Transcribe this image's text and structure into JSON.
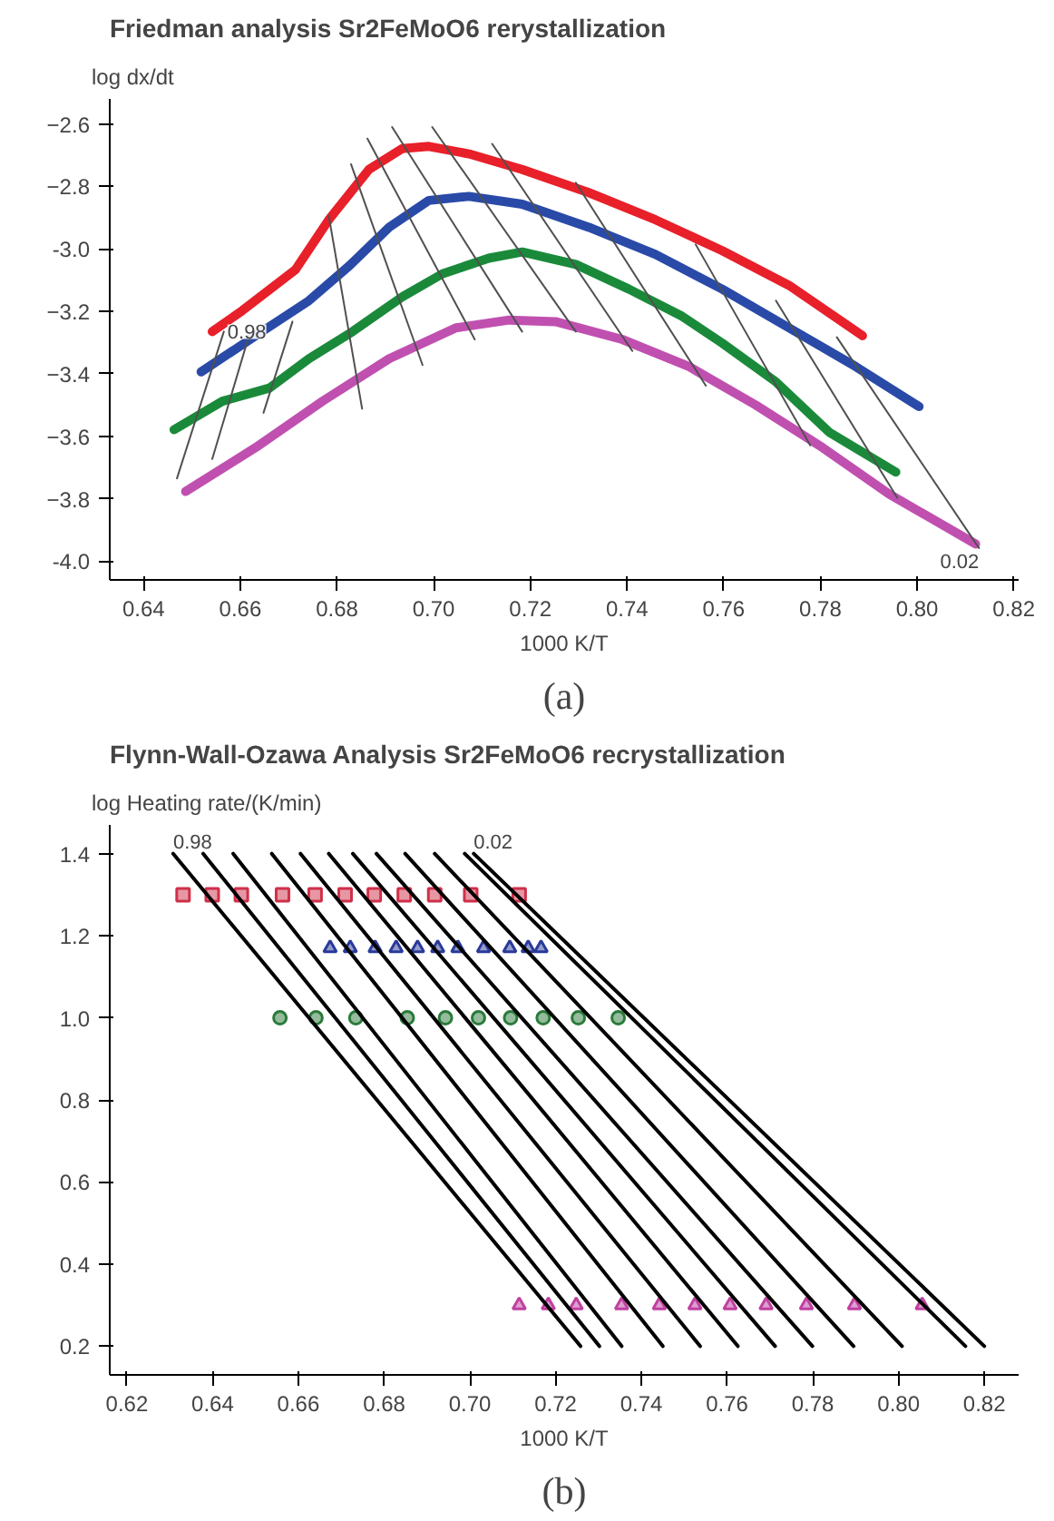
{
  "chart_data": [
    {
      "type": "line",
      "title": "Friedman analysis Sr2FeMoO6 rerystallization",
      "xlabel": "1000 K/T",
      "ylabel": "log dx/dt",
      "xlim": [
        0.633,
        0.821
      ],
      "ylim": [
        -4.06,
        -2.52
      ],
      "xticks": [
        0.64,
        0.66,
        {
          "value": 0.68,
          "label": "0.68"
        },
        {
          "value": 0.7,
          "label": "0.70"
        },
        0.72,
        0.74,
        0.76,
        0.78,
        {
          "value": 0.8,
          "label": "0.80"
        },
        0.82
      ],
      "yticks": [
        {
          "value": -4.0,
          "label": "-4.0"
        },
        -3.8,
        -3.6,
        -3.4,
        -3.2,
        {
          "value": -3.0,
          "label": "-3.0"
        },
        -2.8,
        -2.6
      ],
      "grid": false,
      "series": [
        {
          "color": "#e8202a",
          "x": [
            0.6542,
            0.6604,
            0.6714,
            0.6783,
            0.6866,
            0.6935,
            0.699,
            0.7073,
            0.7183,
            0.7321,
            0.7459,
            0.7597,
            0.7735,
            0.7887
          ],
          "values": [
            -3.265,
            -3.198,
            -3.067,
            -2.907,
            -2.746,
            -2.679,
            -2.672,
            -2.696,
            -2.746,
            -2.82,
            -2.907,
            -3.006,
            -3.117,
            -3.278
          ]
        },
        {
          "color": "#2a4aa8",
          "x": [
            0.6519,
            0.6632,
            0.6742,
            0.6825,
            0.6908,
            0.699,
            0.7073,
            0.7183,
            0.7321,
            0.7459,
            0.7597,
            0.7735,
            0.7873,
            0.8004
          ],
          "values": [
            -3.394,
            -3.278,
            -3.166,
            -3.055,
            -2.931,
            -2.845,
            -2.832,
            -2.857,
            -2.931,
            -3.018,
            -3.129,
            -3.253,
            -3.377,
            -3.505
          ]
        },
        {
          "color": "#1a8a3a",
          "x": [
            0.6463,
            0.6563,
            0.666,
            0.6742,
            0.6832,
            0.6935,
            0.7018,
            0.7114,
            0.7183,
            0.7294,
            0.7404,
            0.7514,
            0.7597,
            0.7708,
            0.7818,
            0.7956
          ],
          "values": [
            -3.579,
            -3.488,
            -3.446,
            -3.352,
            -3.265,
            -3.154,
            -3.08,
            -3.03,
            -3.01,
            -3.05,
            -3.129,
            -3.216,
            -3.302,
            -3.426,
            -3.587,
            -3.715
          ]
        },
        {
          "color": "#c050b0",
          "x": [
            0.6487,
            0.6632,
            0.677,
            0.6908,
            0.7046,
            0.7156,
            0.7252,
            0.739,
            0.7528,
            0.7666,
            0.7804,
            0.7942,
            0.8121
          ],
          "values": [
            -3.777,
            -3.636,
            -3.488,
            -3.352,
            -3.253,
            -3.228,
            -3.233,
            -3.29,
            -3.377,
            -3.5,
            -3.636,
            -3.785,
            -3.945
          ]
        },
        {
          "color": "#505050",
          "x": [
            0.6469,
            0.6566
          ],
          "values": [
            -3.735,
            -3.265
          ]
        },
        {
          "color": "#505050",
          "x": [
            0.6542,
            0.6618
          ],
          "values": [
            -3.673,
            -3.278
          ]
        },
        {
          "color": "#505050",
          "x": [
            0.6648,
            0.6708
          ],
          "values": [
            -3.525,
            -3.233
          ]
        },
        {
          "color": "#505050",
          "x": [
            0.6852,
            0.6783
          ],
          "values": [
            -3.512,
            -2.894
          ]
        },
        {
          "color": "#505050",
          "x": [
            0.6977,
            0.6829
          ],
          "values": [
            -3.372,
            -2.729
          ]
        },
        {
          "color": "#505050",
          "x": [
            0.7085,
            0.6863
          ],
          "values": [
            -3.29,
            -2.647
          ]
        },
        {
          "color": "#505050",
          "x": [
            0.7183,
            0.6914
          ],
          "values": [
            -3.265,
            -2.61
          ]
        },
        {
          "color": "#505050",
          "x": [
            0.7294,
            0.6997
          ],
          "values": [
            -3.265,
            -2.61
          ]
        },
        {
          "color": "#505050",
          "x": [
            0.7411,
            0.7121
          ],
          "values": [
            -3.327,
            -2.664
          ]
        },
        {
          "color": "#505050",
          "x": [
            0.7563,
            0.7294
          ],
          "values": [
            -3.438,
            -2.788
          ]
        },
        {
          "color": "#505050",
          "x": [
            0.7779,
            0.7542
          ],
          "values": [
            -3.629,
            -2.986
          ]
        },
        {
          "color": "#505050",
          "x": [
            0.7959,
            0.7708
          ],
          "values": [
            -3.797,
            -3.166
          ]
        },
        {
          "color": "#505050",
          "x": [
            0.8128,
            0.7834
          ],
          "values": [
            -3.958,
            -3.283
          ]
        }
      ],
      "annotations": [
        "0.98",
        "0.02",
        "(a)"
      ]
    },
    {
      "type": "scatter",
      "title": "Flynn-Wall-Ozawa Analysis Sr2FeMoO6 recrystallization",
      "xlabel": "1000 K/T",
      "ylabel": "log Heating rate/(K/min)",
      "xlim": [
        0.616,
        0.828
      ],
      "ylim": [
        0.13,
        1.47
      ],
      "xticks": [
        0.62,
        0.64,
        0.66,
        0.68,
        {
          "value": 0.7,
          "label": "0.70"
        },
        0.72,
        0.74,
        0.76,
        0.78,
        {
          "value": 0.8,
          "label": "0.80"
        },
        0.82
      ],
      "yticks": [
        0.2,
        0.4,
        0.6,
        0.8,
        {
          "value": 1.0,
          "label": "1.0"
        },
        1.2,
        1.4
      ],
      "grid": false,
      "series": [
        {
          "color": "#d0304a",
          "marker": "square",
          "x": [
            0.6331,
            0.6399,
            0.6467,
            0.6563,
            0.6639,
            0.6709,
            0.6777,
            0.6847,
            0.6918,
            0.7002,
            0.7115
          ],
          "values": [
            1.3,
            1.3,
            1.3,
            1.3,
            1.3,
            1.3,
            1.3,
            1.3,
            1.3,
            1.3,
            1.3
          ]
        },
        {
          "color": "#2a3a9a",
          "marker": "triangle",
          "x": [
            0.6674,
            0.6721,
            0.6779,
            0.6828,
            0.6878,
            0.6925,
            0.6972,
            0.7032,
            0.7093,
            0.7136,
            0.7166
          ],
          "values": [
            1.17,
            1.17,
            1.17,
            1.17,
            1.17,
            1.17,
            1.17,
            1.17,
            1.17,
            1.17,
            1.17
          ]
        },
        {
          "color": "#2a7a3a",
          "marker": "circle",
          "x": [
            0.6557,
            0.6641,
            0.6734,
            0.6854,
            0.6943,
            0.702,
            0.7095,
            0.7171,
            0.7253,
            0.7346
          ],
          "values": [
            1.0,
            1.0,
            1.0,
            1.0,
            1.0,
            1.0,
            1.0,
            1.0,
            1.0,
            1.0
          ]
        },
        {
          "color": "#c040a0",
          "marker": "triangle",
          "x": [
            0.7115,
            0.7183,
            0.7248,
            0.7354,
            0.7442,
            0.7525,
            0.7607,
            0.7691,
            0.7785,
            0.7897,
            0.8055
          ],
          "values": [
            0.3,
            0.3,
            0.3,
            0.3,
            0.3,
            0.3,
            0.3,
            0.3,
            0.3,
            0.3,
            0.3
          ]
        },
        {
          "type": "line",
          "color": "#000000",
          "x": [
            0.6308,
            0.7258
          ],
          "values": [
            1.4,
            0.2
          ]
        },
        {
          "type": "line",
          "color": "#000000",
          "x": [
            0.6378,
            0.7302
          ],
          "values": [
            1.4,
            0.2
          ]
        },
        {
          "type": "line",
          "color": "#000000",
          "x": [
            0.6448,
            0.7354
          ],
          "values": [
            1.4,
            0.2
          ]
        },
        {
          "type": "line",
          "color": "#000000",
          "x": [
            0.6538,
            0.745
          ],
          "values": [
            1.4,
            0.2
          ]
        },
        {
          "type": "line",
          "color": "#000000",
          "x": [
            0.6605,
            0.7537
          ],
          "values": [
            1.4,
            0.2
          ]
        },
        {
          "type": "line",
          "color": "#000000",
          "x": [
            0.6671,
            0.7625
          ],
          "values": [
            1.4,
            0.2
          ]
        },
        {
          "type": "line",
          "color": "#000000",
          "x": [
            0.6727,
            0.7712
          ],
          "values": [
            1.4,
            0.2
          ]
        },
        {
          "type": "line",
          "color": "#000000",
          "x": [
            0.6782,
            0.7799
          ],
          "values": [
            1.4,
            0.2
          ]
        },
        {
          "type": "line",
          "color": "#000000",
          "x": [
            0.6849,
            0.7895
          ],
          "values": [
            1.4,
            0.2
          ]
        },
        {
          "type": "line",
          "color": "#000000",
          "x": [
            0.6918,
            0.8008
          ],
          "values": [
            1.4,
            0.2
          ]
        },
        {
          "type": "line",
          "color": "#000000",
          "x": [
            0.6988,
            0.8156
          ],
          "values": [
            1.4,
            0.2
          ]
        },
        {
          "type": "line",
          "color": "#000000",
          "x": [
            0.7009,
            0.82
          ],
          "values": [
            1.4,
            0.2
          ]
        }
      ],
      "annotations": [
        "0.98",
        "0.02",
        "(b)"
      ]
    }
  ]
}
